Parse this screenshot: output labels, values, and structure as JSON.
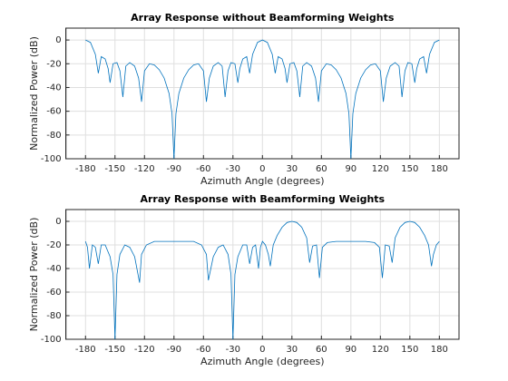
{
  "chart_data": [
    {
      "type": "line",
      "title": "Array Response without Beamforming Weights",
      "x_label": "Azimuth Angle (degrees)",
      "y_label": "Normalized Power (dB)",
      "xlim": [
        -200,
        200
      ],
      "ylim": [
        -100,
        10
      ],
      "xticks": [
        -180,
        -150,
        -120,
        -90,
        -60,
        -30,
        0,
        30,
        60,
        90,
        120,
        150,
        180
      ],
      "yticks": [
        -100,
        -80,
        -60,
        -40,
        -20,
        0
      ],
      "grid": true,
      "x": [
        -180,
        -175,
        -170,
        -167,
        -164,
        -160,
        -157,
        -155,
        -152,
        -148,
        -145,
        -142,
        -139,
        -135,
        -130,
        -126,
        -123,
        -120,
        -115,
        -110,
        -105,
        -100,
        -95,
        -92,
        -90,
        -88,
        -85,
        -80,
        -75,
        -70,
        -65,
        -60,
        -57,
        -54,
        -50,
        -45,
        -41,
        -38,
        -35,
        -32,
        -28,
        -25,
        -23,
        -20,
        -16,
        -13,
        -10,
        -5,
        0,
        5,
        10,
        13,
        16,
        20,
        23,
        25,
        28,
        32,
        35,
        38,
        41,
        45,
        50,
        54,
        57,
        60,
        65,
        70,
        75,
        80,
        85,
        88,
        90,
        92,
        95,
        100,
        105,
        110,
        115,
        120,
        123,
        126,
        130,
        135,
        139,
        142,
        145,
        148,
        152,
        155,
        157,
        160,
        164,
        167,
        170,
        175,
        180
      ],
      "series": [
        {
          "name": "Array Response without Beamforming Weights",
          "color": "#0072bd",
          "values": [
            0,
            -2,
            -12,
            -28,
            -14,
            -16,
            -24,
            -36,
            -20,
            -19,
            -26,
            -48,
            -22,
            -19,
            -22,
            -32,
            -52,
            -26,
            -20,
            -21,
            -25,
            -32,
            -45,
            -62,
            -100,
            -62,
            -45,
            -32,
            -25,
            -21,
            -20,
            -26,
            -52,
            -32,
            -22,
            -19,
            -22,
            -48,
            -26,
            -19,
            -20,
            -36,
            -24,
            -16,
            -14,
            -28,
            -12,
            -2,
            0,
            -2,
            -12,
            -28,
            -14,
            -16,
            -24,
            -36,
            -20,
            -19,
            -26,
            -48,
            -22,
            -19,
            -22,
            -32,
            -52,
            -26,
            -20,
            -21,
            -25,
            -32,
            -45,
            -62,
            -100,
            -62,
            -45,
            -32,
            -25,
            -21,
            -20,
            -26,
            -52,
            -32,
            -22,
            -19,
            -22,
            -48,
            -26,
            -19,
            -20,
            -36,
            -24,
            -16,
            -14,
            -28,
            -12,
            -2,
            0
          ]
        }
      ]
    },
    {
      "type": "line",
      "title": "Array Response with Beamforming Weights",
      "x_label": "Azimuth Angle (degrees)",
      "y_label": "Normalized Power (dB)",
      "xlim": [
        -200,
        200
      ],
      "ylim": [
        -100,
        10
      ],
      "xticks": [
        -180,
        -150,
        -120,
        -90,
        -60,
        -30,
        0,
        30,
        60,
        90,
        120,
        150,
        180
      ],
      "yticks": [
        -100,
        -80,
        -60,
        -40,
        -20,
        0
      ],
      "grid": true,
      "x": [
        -180,
        -178,
        -176,
        -173,
        -170,
        -167,
        -164,
        -160,
        -155,
        -152,
        -150,
        -148,
        -145,
        -140,
        -135,
        -130,
        -125,
        -123,
        -118,
        -110,
        -100,
        -90,
        -80,
        -70,
        -62,
        -57,
        -55,
        -50,
        -45,
        -40,
        -35,
        -32,
        -30,
        -28,
        -25,
        -20,
        -16,
        -13,
        -10,
        -7,
        -4,
        -2,
        0,
        3,
        6,
        8,
        11,
        15,
        20,
        25,
        30,
        35,
        40,
        45,
        48,
        51,
        55,
        58,
        61,
        66,
        75,
        90,
        105,
        114,
        119,
        122,
        125,
        129,
        132,
        135,
        140,
        145,
        150,
        155,
        160,
        165,
        169,
        172,
        174,
        177,
        180
      ],
      "series": [
        {
          "name": "Array Response with Beamforming Weights",
          "color": "#0072bd",
          "values": [
            -17,
            -22,
            -40,
            -20,
            -22,
            -36,
            -20,
            -20,
            -30,
            -45,
            -100,
            -45,
            -28,
            -20,
            -22,
            -30,
            -52,
            -28,
            -20,
            -17,
            -17,
            -17,
            -17,
            -17,
            -20,
            -28,
            -50,
            -30,
            -22,
            -20,
            -28,
            -45,
            -100,
            -45,
            -30,
            -20,
            -20,
            -36,
            -22,
            -20,
            -40,
            -22,
            -17,
            -20,
            -28,
            -38,
            -20,
            -12,
            -5,
            -1,
            0,
            -1,
            -5,
            -14,
            -35,
            -21,
            -20,
            -48,
            -22,
            -18,
            -17,
            -17,
            -17,
            -18,
            -22,
            -48,
            -20,
            -21,
            -35,
            -14,
            -5,
            -1,
            0,
            -1,
            -5,
            -12,
            -20,
            -38,
            -28,
            -20,
            -17
          ]
        }
      ]
    }
  ]
}
